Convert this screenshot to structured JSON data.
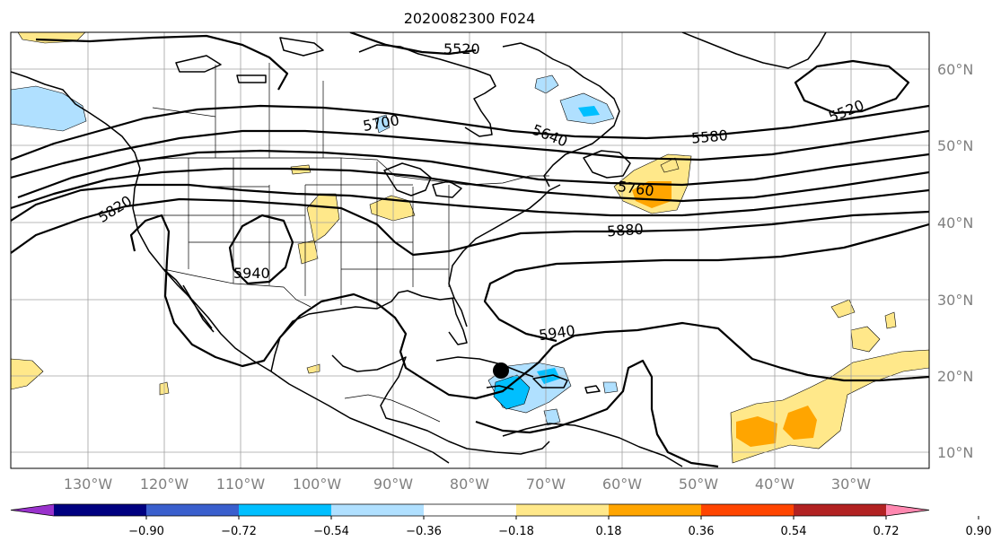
{
  "title": "2020082300 F024",
  "longitude_labels": [
    "130°W",
    "120°W",
    "110°W",
    "100°W",
    "90°W",
    "80°W",
    "70°W",
    "60°W",
    "50°W",
    "40°W",
    "30°W"
  ],
  "latitude_labels": [
    "60°N",
    "50°N",
    "40°N",
    "30°N",
    "20°N",
    "10°N"
  ],
  "contour_labels": [
    "5520",
    "5520",
    "5580",
    "5640",
    "5700",
    "5760",
    "5820",
    "5880",
    "5940",
    "5940"
  ],
  "colorbar": {
    "tick_labels": [
      "−0.90",
      "−0.72",
      "−0.54",
      "−0.36",
      "−0.18",
      "0.18",
      "0.36",
      "0.54",
      "0.72",
      "0.90"
    ],
    "colors": [
      "#9932cc",
      "#000080",
      "#3a5fcd",
      "#00bfff",
      "#b0e0ff",
      "#ffffff",
      "#ffe88a",
      "#ffa500",
      "#ff4500",
      "#b22222",
      "#ff88b0"
    ]
  },
  "shading_colors": {
    "light_yellow": "#ffe88a",
    "orange": "#ffa500",
    "light_blue": "#b0e0ff",
    "blue": "#00bfff"
  },
  "marker_color": "#000000"
}
